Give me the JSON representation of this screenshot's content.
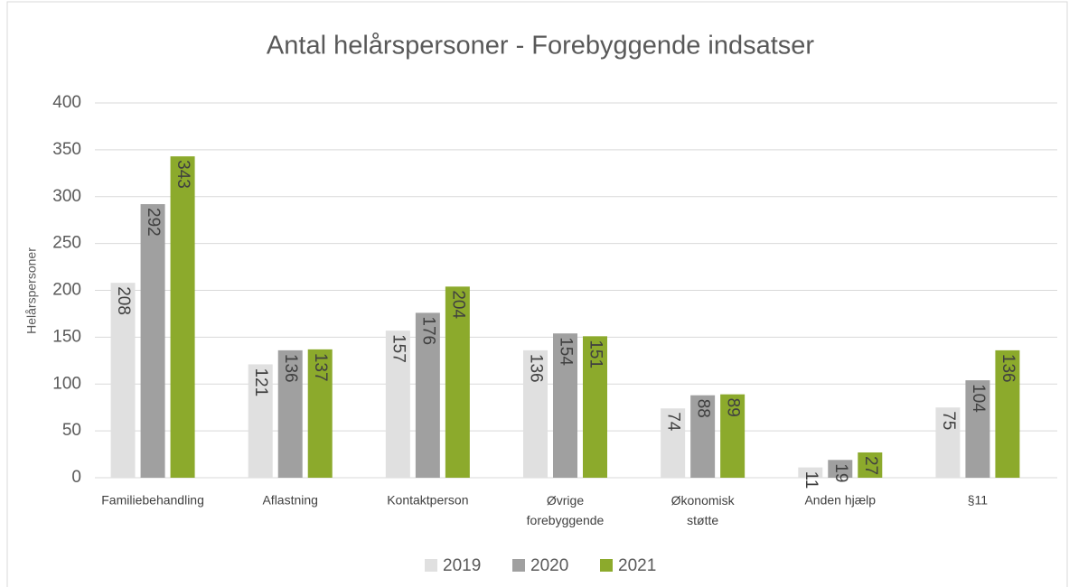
{
  "chart_data": {
    "type": "bar",
    "title": "Antal helårspersoner - Forebyggende indsatser",
    "y_label": "Helårspersoner",
    "categories": [
      "Familiebehandling",
      "Aflastning",
      "Kontaktperson",
      "Øvrige forebyggende",
      "Økonomisk støtte",
      "Anden hjælp",
      "§11"
    ],
    "series": [
      {
        "name": "2019",
        "color": "#e0e0e0",
        "values": [
          208,
          121,
          157,
          136,
          74,
          11,
          75
        ]
      },
      {
        "name": "2020",
        "color": "#a0a0a0",
        "values": [
          292,
          136,
          176,
          154,
          88,
          19,
          104
        ]
      },
      {
        "name": "2021",
        "color": "#8caa2c",
        "values": [
          343,
          137,
          204,
          151,
          89,
          27,
          136
        ]
      }
    ],
    "ylim": [
      0,
      400
    ],
    "yticks": [
      0,
      50,
      100,
      150,
      200,
      250,
      300,
      350,
      400
    ],
    "grid": true,
    "legend": "bottom"
  }
}
